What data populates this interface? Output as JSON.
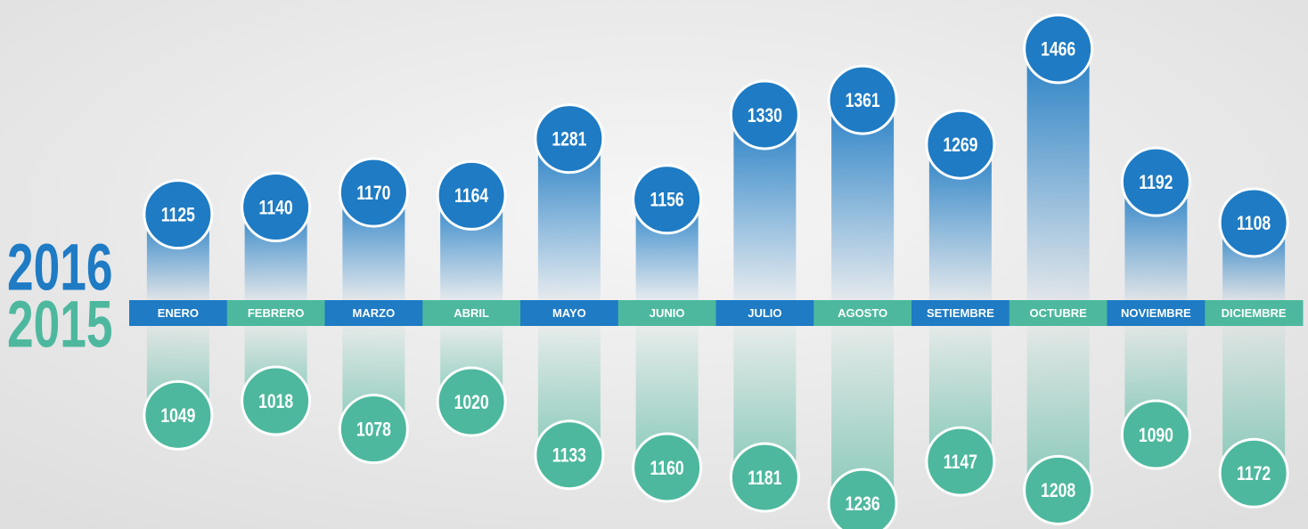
{
  "chart_data": {
    "type": "bubble-columns",
    "categories": [
      "ENERO",
      "FEBRERO",
      "MARZO",
      "ABRIL",
      "MAYO",
      "JUNIO",
      "JULIO",
      "AGOSTO",
      "SETIEMBRE",
      "OCTUBRE",
      "NOVIEMBRE",
      "DICIEMBRE"
    ],
    "series": [
      {
        "name": "2016",
        "color": "#1e7bc4",
        "values": [
          1125,
          1140,
          1170,
          1164,
          1281,
          1156,
          1330,
          1361,
          1269,
          1466,
          1192,
          1108
        ]
      },
      {
        "name": "2015",
        "color": "#4db89e",
        "values": [
          1049,
          1018,
          1078,
          1020,
          1133,
          1160,
          1181,
          1236,
          1147,
          1208,
          1090,
          1172
        ]
      }
    ]
  }
}
